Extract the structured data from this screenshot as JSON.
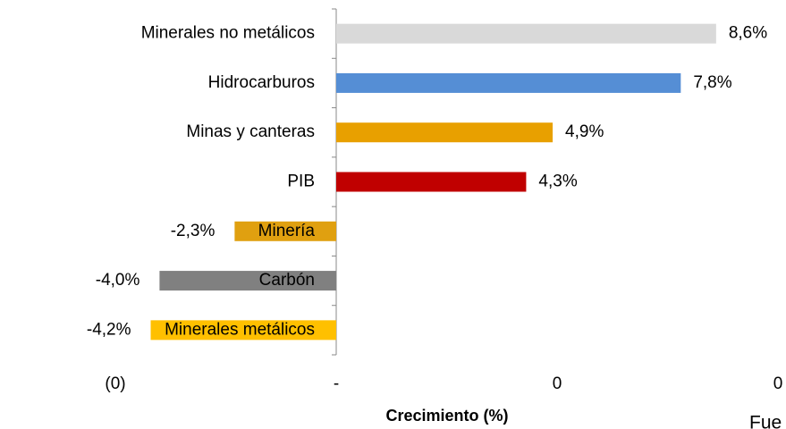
{
  "chart_data": {
    "type": "barh",
    "categories": [
      "Minerales no metálicos",
      "Hidrocarburos",
      "Minas y canteras",
      "PIB",
      "Minería",
      "Carbón",
      "Minerales metálicos"
    ],
    "values": [
      8.6,
      7.8,
      4.9,
      4.3,
      -2.3,
      -4.0,
      -4.2
    ],
    "value_labels": [
      "8,6%",
      "7,8%",
      "4,9%",
      "4,3%",
      "-2,3%",
      "-4,0%",
      "-4,2%"
    ],
    "colors": [
      "#d9d9d9",
      "#558ed5",
      "#e8a000",
      "#c00000",
      "#e0a010",
      "#808080",
      "#ffc000"
    ],
    "xlim": [
      -5,
      10
    ],
    "xticks": [
      {
        "value": -5,
        "label": "(0)"
      },
      {
        "value": 0,
        "label": "-"
      },
      {
        "value": 5,
        "label": "0"
      },
      {
        "value": 10,
        "label": "0"
      }
    ],
    "xlabel": "Crecimiento (%)",
    "annotation": "Fue"
  }
}
